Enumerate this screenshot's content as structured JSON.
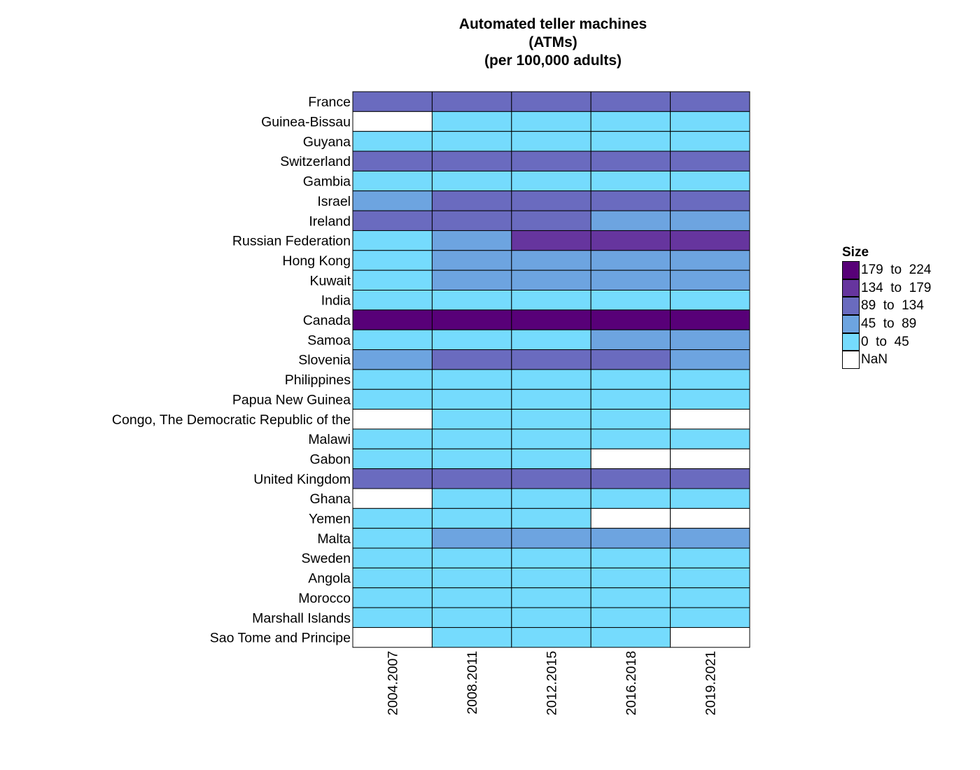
{
  "chart_data": {
    "type": "heatmap",
    "title": [
      "Automated teller machines",
      "(ATMs)",
      "(per 100,000 adults)"
    ],
    "x_categories": [
      "2004.2007",
      "2008.2011",
      "2012.2015",
      "2016.2018",
      "2019.2021"
    ],
    "y_categories": [
      "France",
      "Guinea-Bissau",
      "Guyana",
      "Switzerland",
      "Gambia",
      "Israel",
      "Ireland",
      "Russian Federation",
      "Hong Kong",
      "Kuwait",
      "India",
      "Canada",
      "Samoa",
      "Slovenia",
      "Philippines",
      "Papua New Guinea",
      "Congo, The Democratic Republic of the",
      "Malawi",
      "Gabon",
      "United Kingdom",
      "Ghana",
      "Yemen",
      "Malta",
      "Sweden",
      "Angola",
      "Morocco",
      "Marshall Islands",
      "Sao Tome and Principe"
    ],
    "bin_matrix": [
      [
        "89 to 134",
        "89 to 134",
        "89 to 134",
        "89 to 134",
        "89 to 134"
      ],
      [
        "NaN",
        "0 to 45",
        "0 to 45",
        "0 to 45",
        "0 to 45"
      ],
      [
        "0 to 45",
        "0 to 45",
        "0 to 45",
        "0 to 45",
        "0 to 45"
      ],
      [
        "89 to 134",
        "89 to 134",
        "89 to 134",
        "89 to 134",
        "89 to 134"
      ],
      [
        "0 to 45",
        "0 to 45",
        "0 to 45",
        "0 to 45",
        "0 to 45"
      ],
      [
        "45 to 89",
        "89 to 134",
        "89 to 134",
        "89 to 134",
        "89 to 134"
      ],
      [
        "89 to 134",
        "89 to 134",
        "89 to 134",
        "45 to 89",
        "45 to 89"
      ],
      [
        "0 to 45",
        "45 to 89",
        "134 to 179",
        "134 to 179",
        "134 to 179"
      ],
      [
        "0 to 45",
        "45 to 89",
        "45 to 89",
        "45 to 89",
        "45 to 89"
      ],
      [
        "0 to 45",
        "45 to 89",
        "45 to 89",
        "45 to 89",
        "45 to 89"
      ],
      [
        "0 to 45",
        "0 to 45",
        "0 to 45",
        "0 to 45",
        "0 to 45"
      ],
      [
        "179 to 224",
        "179 to 224",
        "179 to 224",
        "179 to 224",
        "179 to 224"
      ],
      [
        "0 to 45",
        "0 to 45",
        "0 to 45",
        "45 to 89",
        "45 to 89"
      ],
      [
        "45 to 89",
        "89 to 134",
        "89 to 134",
        "89 to 134",
        "45 to 89"
      ],
      [
        "0 to 45",
        "0 to 45",
        "0 to 45",
        "0 to 45",
        "0 to 45"
      ],
      [
        "0 to 45",
        "0 to 45",
        "0 to 45",
        "0 to 45",
        "0 to 45"
      ],
      [
        "NaN",
        "0 to 45",
        "0 to 45",
        "0 to 45",
        "NaN"
      ],
      [
        "0 to 45",
        "0 to 45",
        "0 to 45",
        "0 to 45",
        "0 to 45"
      ],
      [
        "0 to 45",
        "0 to 45",
        "0 to 45",
        "NaN",
        "NaN"
      ],
      [
        "89 to 134",
        "89 to 134",
        "89 to 134",
        "89 to 134",
        "89 to 134"
      ],
      [
        "NaN",
        "0 to 45",
        "0 to 45",
        "0 to 45",
        "0 to 45"
      ],
      [
        "0 to 45",
        "0 to 45",
        "0 to 45",
        "NaN",
        "NaN"
      ],
      [
        "0 to 45",
        "45 to 89",
        "45 to 89",
        "45 to 89",
        "45 to 89"
      ],
      [
        "0 to 45",
        "0 to 45",
        "0 to 45",
        "0 to 45",
        "0 to 45"
      ],
      [
        "0 to 45",
        "0 to 45",
        "0 to 45",
        "0 to 45",
        "0 to 45"
      ],
      [
        "0 to 45",
        "0 to 45",
        "0 to 45",
        "0 to 45",
        "0 to 45"
      ],
      [
        "0 to 45",
        "0 to 45",
        "0 to 45",
        "0 to 45",
        "0 to 45"
      ],
      [
        "NaN",
        "0 to 45",
        "0 to 45",
        "0 to 45",
        "NaN"
      ]
    ],
    "legend": {
      "title": "Size",
      "placement": "right",
      "items": [
        {
          "label": "179  to  224",
          "bin": "179 to 224",
          "color": "#580078"
        },
        {
          "label": "134  to  179",
          "bin": "134 to 179",
          "color": "#66359E"
        },
        {
          "label": "89  to  134",
          "bin": "89 to 134",
          "color": "#6A6BBF"
        },
        {
          "label": "45  to  89",
          "bin": "45 to 89",
          "color": "#6DA4E0"
        },
        {
          "label": "0  to  45",
          "bin": "0 to 45",
          "color": "#75DBFD"
        },
        {
          "label": "NaN",
          "bin": "NaN",
          "color": "#FFFFFF"
        }
      ]
    }
  }
}
